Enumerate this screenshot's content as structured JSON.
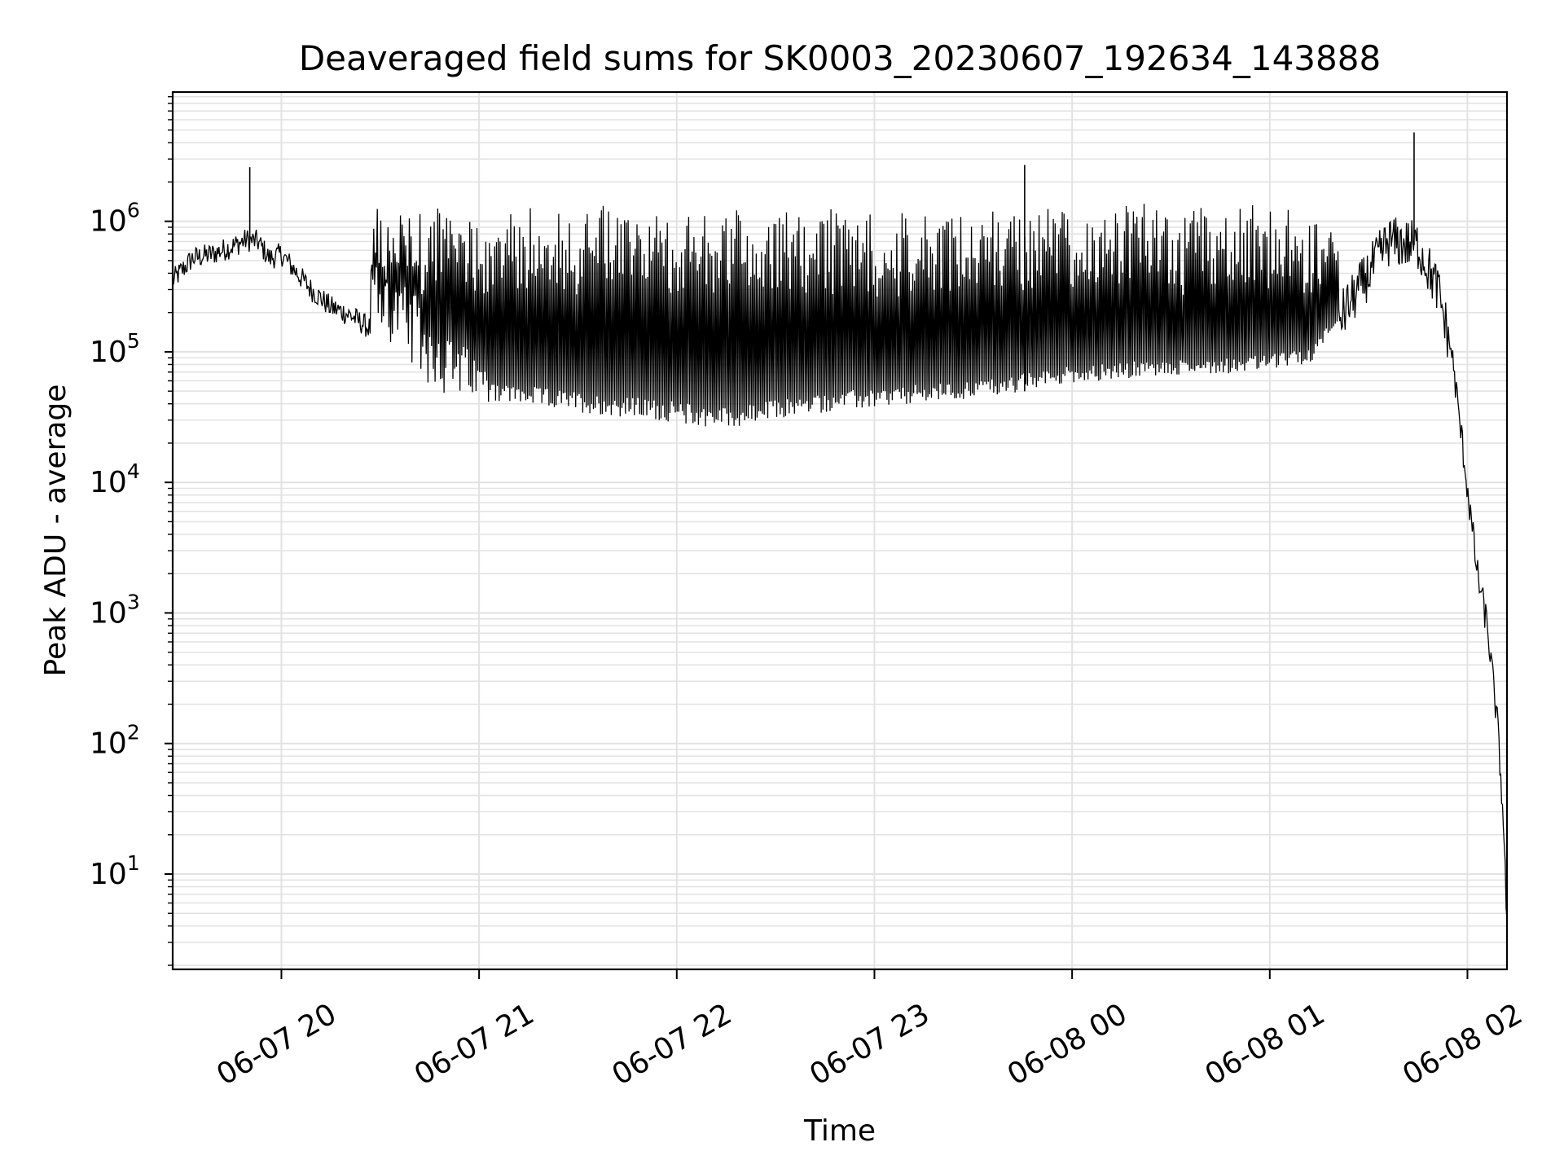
{
  "chart_data": {
    "type": "line",
    "title": "Deaveraged field sums for SK0003_20230607_192634_143888",
    "xlabel": "Time",
    "ylabel": "Peak ADU - average",
    "yscale": "log",
    "xlim_hours": [
      19.45,
      26.2
    ],
    "ylim_log10": [
      0.27,
      6.99
    ],
    "grid": true,
    "x_tick_labels": [
      "06-07 20",
      "06-07 21",
      "06-07 22",
      "06-07 23",
      "06-08 00",
      "06-08 01",
      "06-08 02"
    ],
    "x_tick_hours": [
      20,
      21,
      22,
      23,
      24,
      25,
      26
    ],
    "y_ticks": [
      {
        "base": "10",
        "exp": "1",
        "value": 10
      },
      {
        "base": "10",
        "exp": "2",
        "value": 100
      },
      {
        "base": "10",
        "exp": "3",
        "value": 1000
      },
      {
        "base": "10",
        "exp": "4",
        "value": 10000
      },
      {
        "base": "10",
        "exp": "5",
        "value": 100000
      },
      {
        "base": "10",
        "exp": "6",
        "value": 1000000
      }
    ],
    "series": [
      {
        "name": "peak_adu_minus_average",
        "color": "#000000",
        "points": [
          [
            19.45,
            350000
          ],
          [
            19.55,
            520000
          ],
          [
            19.65,
            560000
          ],
          [
            19.75,
            640000
          ],
          [
            19.82,
            720000
          ],
          [
            19.88,
            700000
          ],
          [
            19.94,
            520000
          ],
          [
            20.0,
            560000
          ],
          [
            20.08,
            400000
          ],
          [
            20.15,
            300000
          ],
          [
            20.25,
            220000
          ],
          [
            20.35,
            190000
          ],
          [
            20.45,
            150000
          ],
          [
            20.55,
            110000
          ],
          [
            20.65,
            75000
          ],
          [
            20.75,
            55000
          ],
          [
            20.85,
            45000
          ],
          [
            21.0,
            42000
          ],
          [
            21.3,
            38000
          ],
          [
            21.6,
            33000
          ],
          [
            21.9,
            30000
          ],
          [
            22.1,
            27000
          ],
          [
            22.3,
            26000
          ],
          [
            22.5,
            30000
          ],
          [
            22.8,
            35000
          ],
          [
            23.1,
            38000
          ],
          [
            23.4,
            42000
          ],
          [
            23.7,
            48000
          ],
          [
            24.0,
            58000
          ],
          [
            24.3,
            62000
          ],
          [
            24.6,
            66000
          ],
          [
            24.9,
            70000
          ],
          [
            25.2,
            80000
          ],
          [
            25.45,
            300000
          ],
          [
            25.6,
            700000
          ],
          [
            25.75,
            650000
          ],
          [
            25.85,
            300000
          ],
          [
            25.92,
            100000
          ],
          [
            25.96,
            30000
          ],
          [
            26.0,
            9000
          ],
          [
            26.05,
            2000
          ],
          [
            26.1,
            800
          ],
          [
            26.15,
            150
          ],
          [
            26.18,
            30
          ],
          [
            26.2,
            4
          ]
        ],
        "spikes": [
          {
            "time_hours": 19.84,
            "value": 2600000
          },
          {
            "time_hours": 23.76,
            "value": 2700000
          },
          {
            "time_hours": 25.73,
            "value": 4800000
          }
        ]
      }
    ]
  }
}
